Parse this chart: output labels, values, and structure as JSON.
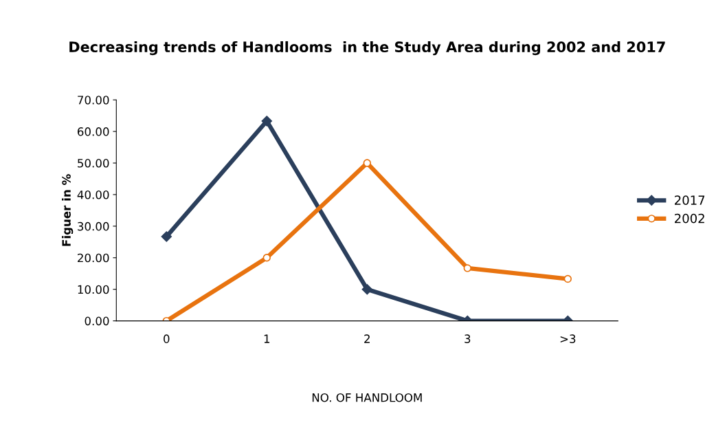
{
  "chart_data": {
    "type": "line",
    "title": "Decreasing trends of Handlooms  in the Study Area during 2002 and 2017",
    "xlabel": "NO. OF HANDLOOM",
    "ylabel": "Figuer in %",
    "categories": [
      "0",
      "1",
      "2",
      "3",
      ">3"
    ],
    "series": [
      {
        "name": "2017",
        "color": "#2b3f5c",
        "marker": "diamond",
        "values": [
          26.7,
          63.3,
          10,
          0,
          0
        ]
      },
      {
        "name": "2002",
        "color": "#e8730f",
        "marker": "circle",
        "values": [
          0,
          20,
          50,
          16.7,
          13.3
        ]
      }
    ],
    "ylim": [
      0,
      70
    ],
    "yticks": [
      {
        "value": 0,
        "label": "0.00"
      },
      {
        "value": 10,
        "label": "10.00"
      },
      {
        "value": 20,
        "label": "20.00"
      },
      {
        "value": 30,
        "label": "30.00"
      },
      {
        "value": 40,
        "label": "40.00"
      },
      {
        "value": 50,
        "label": "50.00"
      },
      {
        "value": 60,
        "label": "60.00"
      },
      {
        "value": 70,
        "label": "70.00"
      }
    ],
    "grid": false,
    "legend": "right",
    "line_style": "solid"
  }
}
